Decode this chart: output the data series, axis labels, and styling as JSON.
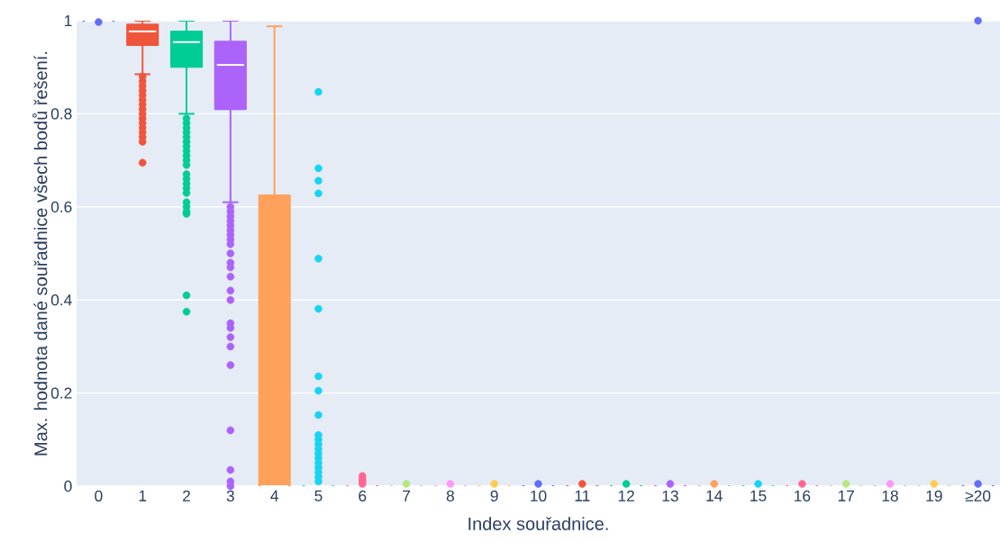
{
  "chart_data": {
    "type": "box",
    "xlabel": "Index souřadnice.",
    "ylabel": "Max. hodnota dané souřadnice všech bodů řešení.",
    "categories": [
      "0",
      "1",
      "2",
      "3",
      "4",
      "5",
      "6",
      "7",
      "8",
      "9",
      "10",
      "11",
      "12",
      "13",
      "14",
      "15",
      "16",
      "17",
      "18",
      "19",
      "≥20"
    ],
    "colors": [
      "#636efa",
      "#ef553b",
      "#00cc96",
      "#ab63fa",
      "#ffa15a",
      "#19d3f3",
      "#ff6692",
      "#b6e880",
      "#ff97ff",
      "#fecb52",
      "#636efa",
      "#ef553b",
      "#00cc96",
      "#ab63fa",
      "#ffa15a",
      "#19d3f3",
      "#ff6692",
      "#b6e880",
      "#ff97ff",
      "#fecb52",
      "#636efa"
    ],
    "boxes": [
      {
        "low": 1,
        "q1": 1,
        "median": 1,
        "q3": 1,
        "high": 1,
        "outliers": [
          0.997
        ]
      },
      {
        "low": 0.885,
        "q1": 0.948,
        "median": 0.977,
        "q3": 0.992,
        "high": 1,
        "outliers": [
          0.88,
          0.87,
          0.86,
          0.85,
          0.84,
          0.83,
          0.82,
          0.81,
          0.8,
          0.79,
          0.78,
          0.77,
          0.76,
          0.75,
          0.74,
          0.695
        ]
      },
      {
        "low": 0.8,
        "q1": 0.901,
        "median": 0.954,
        "q3": 0.977,
        "high": 1,
        "outliers": [
          0.79,
          0.78,
          0.77,
          0.76,
          0.75,
          0.74,
          0.73,
          0.72,
          0.71,
          0.7,
          0.69,
          0.67,
          0.66,
          0.65,
          0.64,
          0.63,
          0.61,
          0.6,
          0.59,
          0.585,
          0.41,
          0.375
        ]
      },
      {
        "low": 0.61,
        "q1": 0.81,
        "median": 0.905,
        "q3": 0.955,
        "high": 1,
        "outliers": [
          0.6,
          0.59,
          0.58,
          0.57,
          0.56,
          0.55,
          0.54,
          0.53,
          0.52,
          0.5,
          0.48,
          0.47,
          0.45,
          0.42,
          0.4,
          0.35,
          0.34,
          0.32,
          0.3,
          0.26,
          0.12,
          0.035,
          0.01,
          0
        ]
      },
      {
        "low": 0,
        "q1": 0,
        "median": 0,
        "q3": 0.625,
        "high": 0.988
      },
      {
        "low": 0,
        "q1": 0,
        "median": 0,
        "q3": 0,
        "high": 0,
        "outliers": [
          0.847,
          0.683,
          0.656,
          0.629,
          0.489,
          0.381,
          0.236,
          0.205,
          0.153,
          0.11,
          0.1,
          0.09,
          0.08,
          0.07,
          0.06,
          0.05,
          0.04,
          0.03,
          0.02,
          0.01
        ]
      },
      {
        "low": 0,
        "q1": 0,
        "median": 0,
        "q3": 0,
        "high": 0,
        "outliers": [
          0.022,
          0.015,
          0.01,
          0.005
        ]
      },
      {
        "low": 0,
        "q1": 0,
        "median": 0,
        "q3": 0,
        "high": 0,
        "outliers": [
          0.005
        ]
      },
      {
        "low": 0,
        "q1": 0,
        "median": 0,
        "q3": 0,
        "high": 0,
        "outliers": [
          0.005
        ]
      },
      {
        "low": 0,
        "q1": 0,
        "median": 0,
        "q3": 0,
        "high": 0,
        "outliers": [
          0.005
        ]
      },
      {
        "low": 0,
        "q1": 0,
        "median": 0,
        "q3": 0,
        "high": 0,
        "outliers": [
          0.005
        ]
      },
      {
        "low": 0,
        "q1": 0,
        "median": 0,
        "q3": 0,
        "high": 0,
        "outliers": [
          0.005
        ]
      },
      {
        "low": 0,
        "q1": 0,
        "median": 0,
        "q3": 0,
        "high": 0,
        "outliers": [
          0.005
        ]
      },
      {
        "low": 0,
        "q1": 0,
        "median": 0,
        "q3": 0,
        "high": 0,
        "outliers": [
          0.005
        ]
      },
      {
        "low": 0,
        "q1": 0,
        "median": 0,
        "q3": 0,
        "high": 0,
        "outliers": [
          0.005
        ]
      },
      {
        "low": 0,
        "q1": 0,
        "median": 0,
        "q3": 0,
        "high": 0,
        "outliers": [
          0.005
        ]
      },
      {
        "low": 0,
        "q1": 0,
        "median": 0,
        "q3": 0,
        "high": 0,
        "outliers": [
          0.005
        ]
      },
      {
        "low": 0,
        "q1": 0,
        "median": 0,
        "q3": 0,
        "high": 0,
        "outliers": [
          0.005
        ]
      },
      {
        "low": 0,
        "q1": 0,
        "median": 0,
        "q3": 0,
        "high": 0,
        "outliers": [
          0.005
        ]
      },
      {
        "low": 0,
        "q1": 0,
        "median": 0,
        "q3": 0,
        "high": 0,
        "outliers": [
          0.005
        ]
      },
      {
        "low": 0,
        "q1": 0,
        "median": 0,
        "q3": 0,
        "high": 0,
        "outliers": [
          0.005,
          1
        ]
      }
    ],
    "ylim": [
      0,
      1
    ],
    "yticks": [
      0,
      0.2,
      0.4,
      0.6,
      0.8,
      1
    ],
    "grid": "y",
    "marker": "circle"
  }
}
